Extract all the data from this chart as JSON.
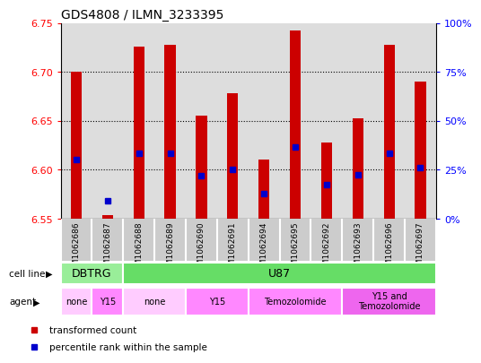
{
  "title": "GDS4808 / ILMN_3233395",
  "samples": [
    "GSM1062686",
    "GSM1062687",
    "GSM1062688",
    "GSM1062689",
    "GSM1062690",
    "GSM1062691",
    "GSM1062694",
    "GSM1062695",
    "GSM1062692",
    "GSM1062693",
    "GSM1062696",
    "GSM1062697"
  ],
  "bar_values": [
    6.7,
    6.553,
    6.726,
    6.728,
    6.655,
    6.678,
    6.61,
    6.742,
    6.628,
    6.652,
    6.728,
    6.69
  ],
  "bar_base": 6.55,
  "blue_dot_values": [
    6.61,
    6.568,
    6.617,
    6.617,
    6.594,
    6.6,
    6.575,
    6.623,
    6.585,
    6.595,
    6.617,
    6.602
  ],
  "ylim": [
    6.55,
    6.75
  ],
  "yticks": [
    6.55,
    6.6,
    6.65,
    6.7,
    6.75
  ],
  "right_ytick_labels": [
    "0%",
    "25%",
    "50%",
    "75%",
    "100%"
  ],
  "right_ytick_vals": [
    6.55,
    6.6,
    6.65,
    6.7,
    6.75
  ],
  "bar_color": "#CC0000",
  "dot_color": "#0000CC",
  "grid_lines": [
    6.6,
    6.65,
    6.7
  ],
  "cell_line_groups": [
    {
      "label": "DBTRG",
      "start": 0,
      "end": 1,
      "color": "#99EE99"
    },
    {
      "label": "U87",
      "start": 2,
      "end": 11,
      "color": "#66DD66"
    }
  ],
  "agent_groups": [
    {
      "label": "none",
      "start": 0,
      "end": 0,
      "color": "#FFCCFF"
    },
    {
      "label": "Y15",
      "start": 1,
      "end": 1,
      "color": "#FF88FF"
    },
    {
      "label": "none",
      "start": 2,
      "end": 3,
      "color": "#FFCCFF"
    },
    {
      "label": "Y15",
      "start": 4,
      "end": 5,
      "color": "#FF88FF"
    },
    {
      "label": "Temozolomide",
      "start": 6,
      "end": 8,
      "color": "#FF88FF"
    },
    {
      "label": "Y15 and\nTemozolomide",
      "start": 9,
      "end": 11,
      "color": "#EE66EE"
    }
  ]
}
